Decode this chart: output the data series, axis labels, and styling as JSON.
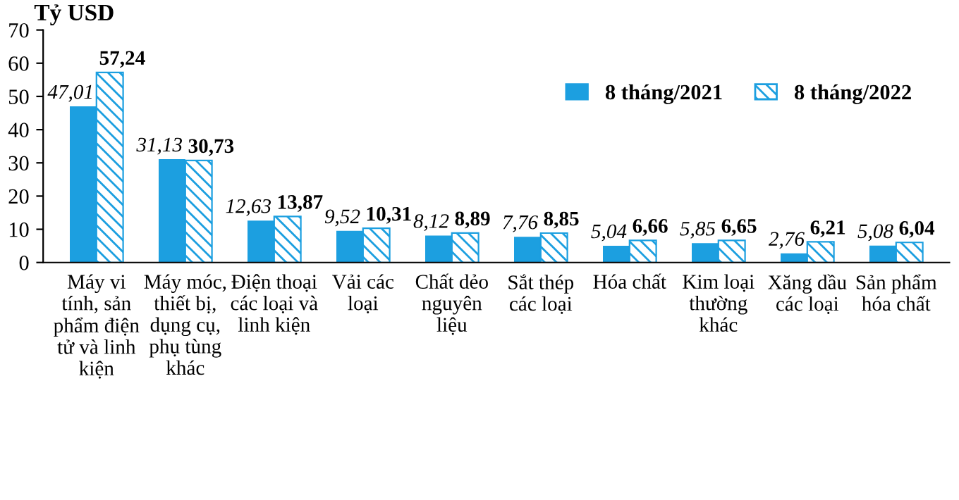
{
  "chart_data": {
    "type": "bar",
    "ylabel": "Tỷ USD",
    "categories": [
      "Máy vi\ntính, sản\nphẩm điện\ntử và linh\nkiện",
      "Máy móc,\nthiết bị,\ndụng cụ,\nphụ tùng\nkhác",
      "Điện thoại\ncác loại và\nlinh kiện",
      "Vải các\nloại",
      "Chất dẻo\nnguyên\nliệu",
      "Sắt thép\ncác loại",
      "Hóa chất",
      "Kim loại\nthường\nkhác",
      "Xăng dầu\ncác loại",
      "Sản phẩm\nhóa chất"
    ],
    "series": [
      {
        "name": "8 tháng/2021",
        "color": "#1c9fe0",
        "values": [
          47.01,
          31.13,
          12.63,
          9.52,
          8.12,
          7.76,
          5.04,
          5.85,
          2.76,
          5.08
        ],
        "value_labels": [
          "47,01",
          "31,13",
          "12,63",
          "9,52",
          "8,12",
          "7,76",
          "5,04",
          "5,85",
          "2,76",
          "5,08"
        ]
      },
      {
        "name": "8 tháng/2022",
        "color": "#1c9fe0",
        "values": [
          57.24,
          30.73,
          13.87,
          10.31,
          8.89,
          8.85,
          6.66,
          6.65,
          6.21,
          6.04
        ],
        "value_labels": [
          "57,24",
          "30,73",
          "13,87",
          "10,31",
          "8,89",
          "8,85",
          "6,66",
          "6,65",
          "6,21",
          "6,04"
        ]
      }
    ],
    "ylim": [
      0,
      70
    ],
    "yticks": [
      0,
      10,
      20,
      30,
      40,
      50,
      60,
      70
    ],
    "grid": false,
    "legend": "top right"
  }
}
